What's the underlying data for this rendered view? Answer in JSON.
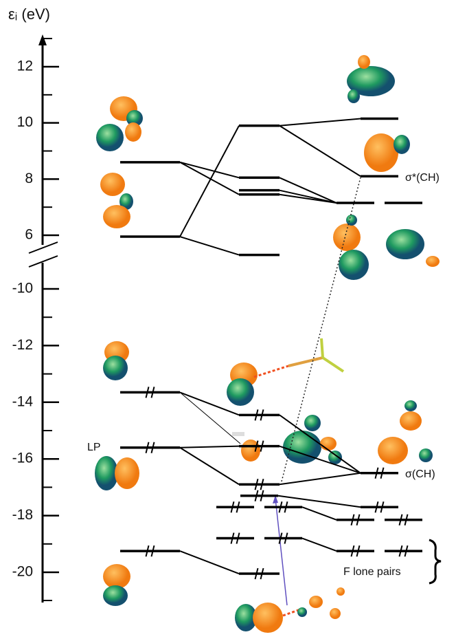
{
  "axis": {
    "label": "εᵢ (eV)",
    "upper_ticks": [
      12,
      10,
      8,
      6
    ],
    "lower_ticks": [
      -10,
      -12,
      -14,
      -16,
      -18,
      -20
    ]
  },
  "labels": {
    "lp": "LP",
    "sigma_star": "σ*(CH)",
    "sigma": "σ(CH)",
    "f_lone_pairs": "F lone pairs"
  },
  "levels": {
    "left": [
      8.6,
      5.95,
      -13.65,
      -15.6,
      -19.25
    ],
    "middle": [
      9.9,
      8.05,
      7.6,
      7.45,
      5.3,
      -14.45,
      -15.55,
      -16.9,
      -17.3,
      -17.7,
      -18.8,
      -20.05
    ],
    "right": [
      10.15,
      8.1,
      7.15,
      -16.5,
      -17.7,
      -18.15,
      -19.25
    ]
  }
}
